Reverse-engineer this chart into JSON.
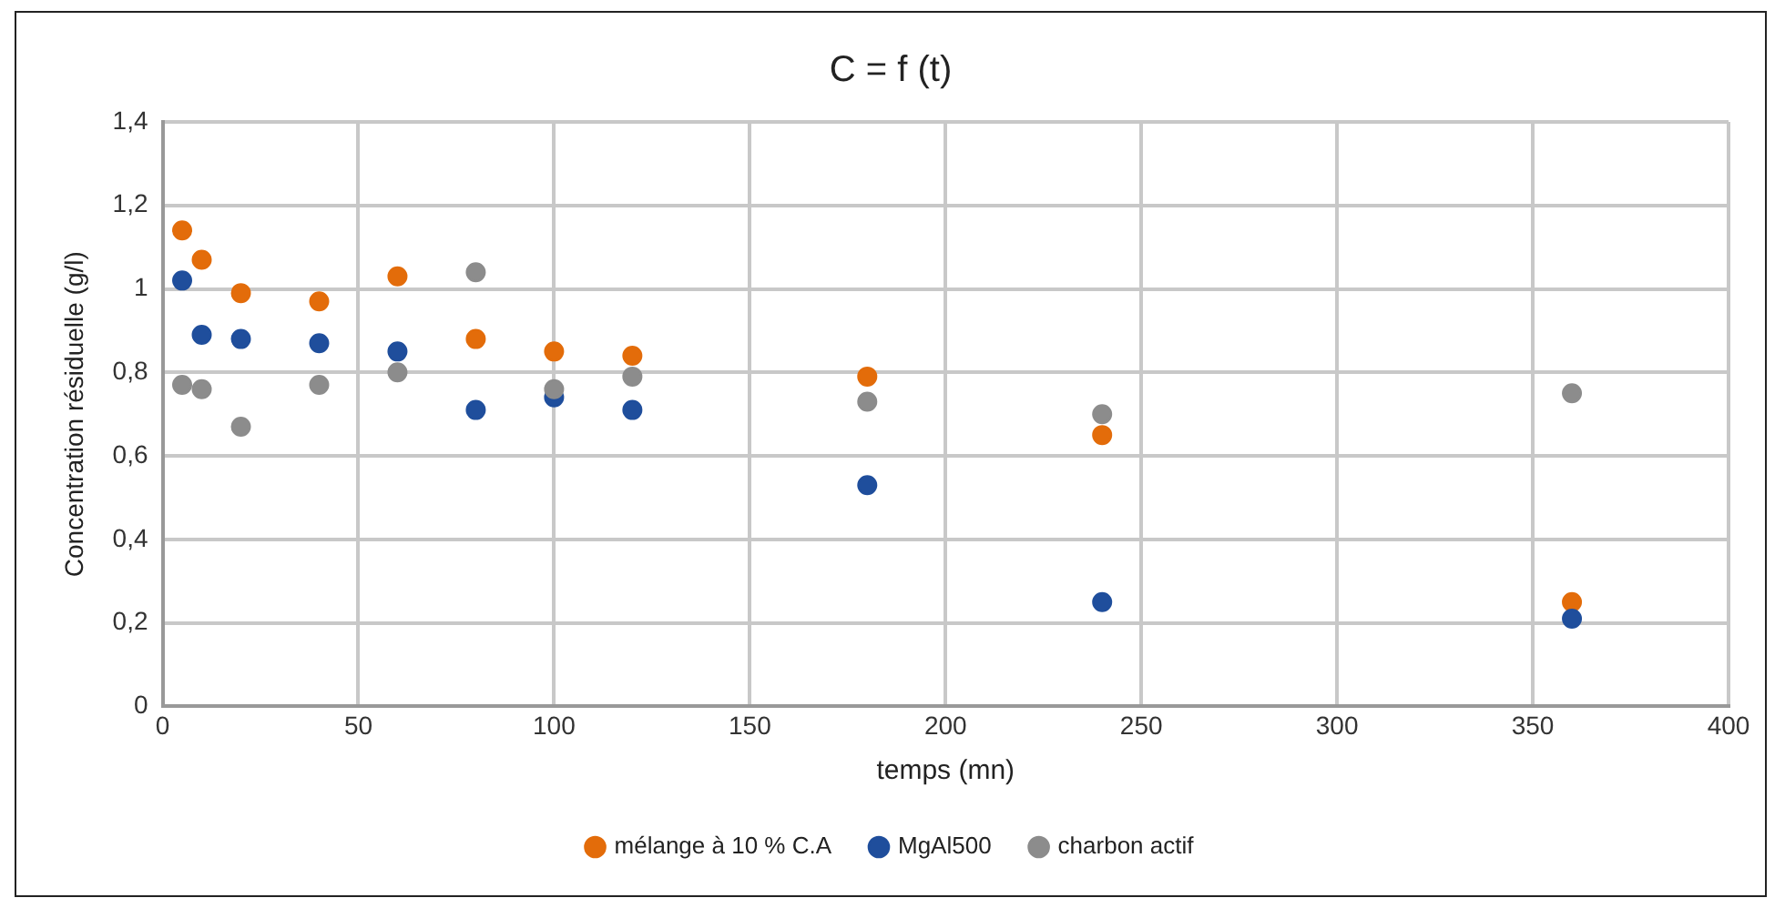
{
  "chart_data": {
    "type": "scatter",
    "title": "C = f (t)",
    "xlabel": "temps (mn)",
    "ylabel": "Concentration résiduelle (g/l)",
    "x": [
      5,
      10,
      20,
      40,
      60,
      80,
      100,
      120,
      180,
      240,
      360
    ],
    "series": [
      {
        "name": "mélange à 10 % C.A",
        "color": "#e36c0a",
        "values": [
          1.14,
          1.07,
          0.99,
          0.97,
          1.03,
          0.88,
          0.85,
          0.84,
          0.79,
          0.65,
          0.25
        ]
      },
      {
        "name": "MgAl500",
        "color": "#1f4e9c",
        "values": [
          1.02,
          0.89,
          0.88,
          0.87,
          0.85,
          0.71,
          0.74,
          0.71,
          0.53,
          0.25,
          0.21
        ]
      },
      {
        "name": "charbon actif",
        "color": "#8c8c8c",
        "values": [
          0.77,
          0.76,
          0.67,
          0.77,
          0.8,
          1.04,
          0.76,
          0.79,
          0.73,
          0.7,
          0.75
        ]
      }
    ],
    "xlim": [
      0,
      400
    ],
    "xticks": [
      0,
      50,
      100,
      150,
      200,
      250,
      300,
      350,
      400
    ],
    "ylim": [
      0,
      1.4
    ],
    "yticks": [
      0,
      {
        "value": 0.2,
        "label": "0,2"
      },
      {
        "value": 0.4,
        "label": "0,4"
      },
      {
        "value": 0.6,
        "label": "0,6"
      },
      {
        "value": 0.8,
        "label": "0,8"
      },
      1,
      {
        "value": 1.2,
        "label": "1,2"
      },
      {
        "value": 1.4,
        "label": "1,4"
      }
    ],
    "grid": true,
    "legend": "bottom",
    "marker": "circle"
  }
}
